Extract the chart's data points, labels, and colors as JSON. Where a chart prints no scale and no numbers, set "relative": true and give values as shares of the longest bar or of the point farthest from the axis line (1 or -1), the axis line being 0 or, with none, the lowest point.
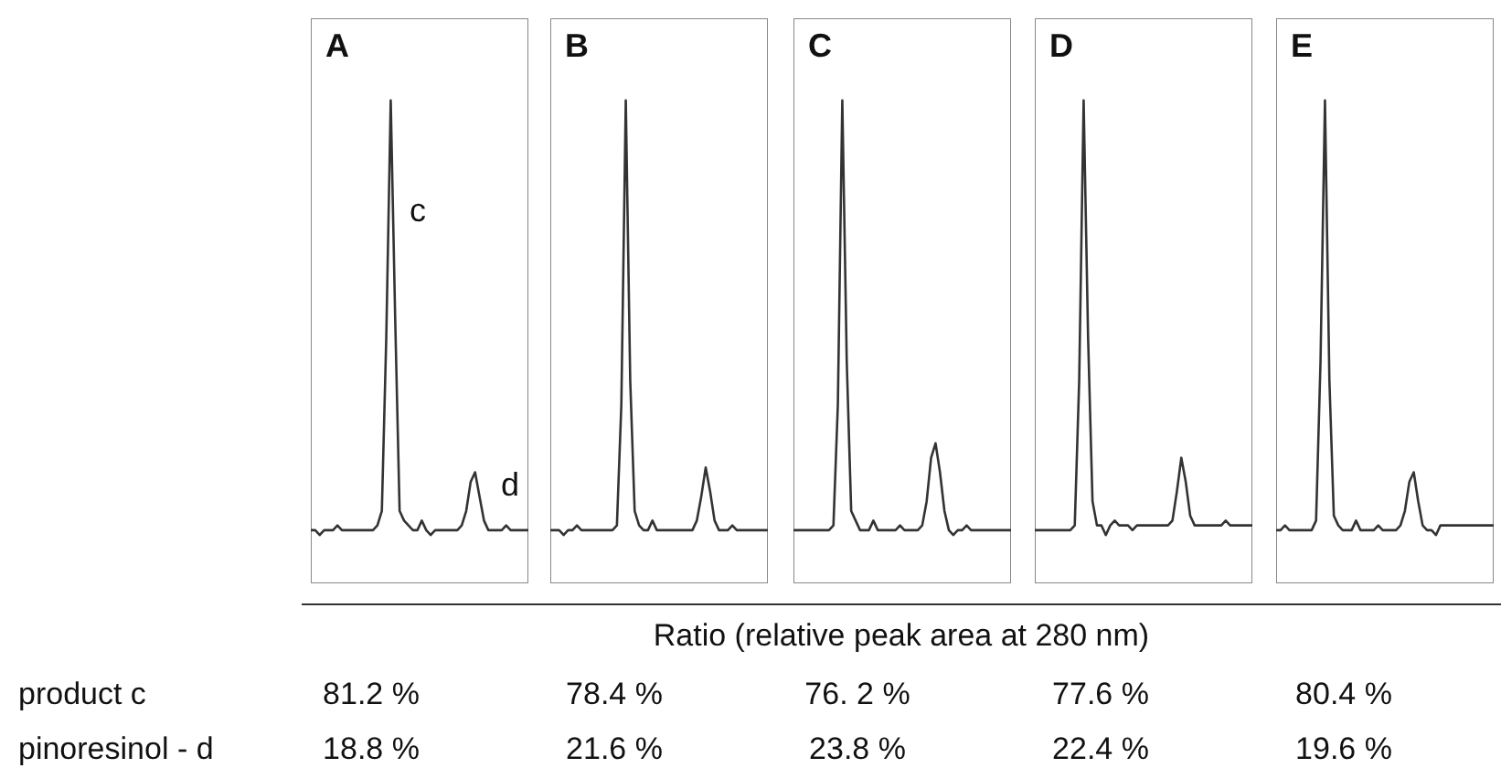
{
  "chart_data": [
    {
      "type": "line",
      "title": "A",
      "relative": true,
      "categories": [
        null,
        null,
        null,
        null,
        null,
        null,
        null,
        null,
        null,
        null,
        null,
        null,
        null,
        null,
        null,
        null,
        null,
        null,
        null,
        null,
        null,
        null,
        null,
        null,
        null,
        null,
        null,
        null,
        null,
        null,
        null,
        null,
        null,
        null,
        null,
        null,
        null,
        null,
        null,
        null,
        null,
        null,
        null,
        null,
        null,
        null,
        null,
        null,
        null,
        null
      ],
      "series": [
        {
          "color": "#333333",
          "values": [
            0.11,
            0.11,
            0.1,
            0.11,
            0.11,
            0.11,
            0.12,
            0.11,
            0.11,
            0.11,
            0.11,
            0.11,
            0.11,
            0.11,
            0.11,
            0.12,
            0.15,
            0.51,
            1,
            0.55,
            0.15,
            0.13,
            0.12,
            0.11,
            0.11,
            0.13,
            0.11,
            0.1,
            0.11,
            0.11,
            0.11,
            0.11,
            0.11,
            0.11,
            0.12,
            0.15,
            0.21,
            0.23,
            0.18,
            0.13,
            0.11,
            0.11,
            0.11,
            0.11,
            0.12,
            0.11,
            0.11,
            0.11,
            0.11,
            0.11
          ]
        }
      ],
      "annotations": [
        "c",
        "d"
      ]
    },
    {
      "type": "line",
      "title": "B",
      "relative": true,
      "categories": [
        null,
        null,
        null,
        null,
        null,
        null,
        null,
        null,
        null,
        null,
        null,
        null,
        null,
        null,
        null,
        null,
        null,
        null,
        null,
        null,
        null,
        null,
        null,
        null,
        null,
        null,
        null,
        null,
        null,
        null,
        null,
        null,
        null,
        null,
        null,
        null,
        null,
        null,
        null,
        null,
        null,
        null,
        null,
        null,
        null,
        null,
        null,
        null,
        null,
        null
      ],
      "series": [
        {
          "color": "#333333",
          "values": [
            0.11,
            0.11,
            0.11,
            0.1,
            0.11,
            0.11,
            0.12,
            0.11,
            0.11,
            0.11,
            0.11,
            0.11,
            0.11,
            0.11,
            0.11,
            0.12,
            0.37,
            1,
            0.42,
            0.15,
            0.12,
            0.11,
            0.11,
            0.13,
            0.11,
            0.11,
            0.11,
            0.11,
            0.11,
            0.11,
            0.11,
            0.11,
            0.11,
            0.13,
            0.18,
            0.24,
            0.19,
            0.13,
            0.11,
            0.11,
            0.11,
            0.12,
            0.11,
            0.11,
            0.11,
            0.11,
            0.11,
            0.11,
            0.11,
            0.11
          ]
        }
      ]
    },
    {
      "type": "line",
      "title": "C",
      "relative": true,
      "categories": [
        null,
        null,
        null,
        null,
        null,
        null,
        null,
        null,
        null,
        null,
        null,
        null,
        null,
        null,
        null,
        null,
        null,
        null,
        null,
        null,
        null,
        null,
        null,
        null,
        null,
        null,
        null,
        null,
        null,
        null,
        null,
        null,
        null,
        null,
        null,
        null,
        null,
        null,
        null,
        null,
        null,
        null,
        null,
        null,
        null,
        null,
        null,
        null,
        null,
        null
      ],
      "series": [
        {
          "color": "#333333",
          "values": [
            0.11,
            0.11,
            0.11,
            0.11,
            0.11,
            0.11,
            0.11,
            0.11,
            0.11,
            0.12,
            0.37,
            1,
            0.46,
            0.15,
            0.13,
            0.11,
            0.11,
            0.11,
            0.13,
            0.11,
            0.11,
            0.11,
            0.11,
            0.11,
            0.12,
            0.11,
            0.11,
            0.11,
            0.11,
            0.12,
            0.17,
            0.26,
            0.29,
            0.23,
            0.15,
            0.11,
            0.1,
            0.11,
            0.11,
            0.12,
            0.11,
            0.11,
            0.11,
            0.11,
            0.11,
            0.11,
            0.11,
            0.11,
            0.11,
            0.11
          ]
        }
      ]
    },
    {
      "type": "line",
      "title": "D",
      "relative": true,
      "categories": [
        null,
        null,
        null,
        null,
        null,
        null,
        null,
        null,
        null,
        null,
        null,
        null,
        null,
        null,
        null,
        null,
        null,
        null,
        null,
        null,
        null,
        null,
        null,
        null,
        null,
        null,
        null,
        null,
        null,
        null,
        null,
        null,
        null,
        null,
        null,
        null,
        null,
        null,
        null,
        null,
        null,
        null,
        null,
        null,
        null,
        null,
        null,
        null,
        null,
        null
      ],
      "series": [
        {
          "color": "#333333",
          "values": [
            0.11,
            0.11,
            0.11,
            0.11,
            0.11,
            0.11,
            0.11,
            0.11,
            0.11,
            0.12,
            0.42,
            1,
            0.51,
            0.17,
            0.12,
            0.12,
            0.1,
            0.12,
            0.13,
            0.12,
            0.12,
            0.12,
            0.11,
            0.12,
            0.12,
            0.12,
            0.12,
            0.12,
            0.12,
            0.12,
            0.12,
            0.13,
            0.19,
            0.26,
            0.21,
            0.14,
            0.12,
            0.12,
            0.12,
            0.12,
            0.12,
            0.12,
            0.12,
            0.13,
            0.12,
            0.12,
            0.12,
            0.12,
            0.12,
            0.12
          ]
        }
      ]
    },
    {
      "type": "line",
      "title": "E",
      "relative": true,
      "categories": [
        null,
        null,
        null,
        null,
        null,
        null,
        null,
        null,
        null,
        null,
        null,
        null,
        null,
        null,
        null,
        null,
        null,
        null,
        null,
        null,
        null,
        null,
        null,
        null,
        null,
        null,
        null,
        null,
        null,
        null,
        null,
        null,
        null,
        null,
        null,
        null,
        null,
        null,
        null,
        null,
        null,
        null,
        null,
        null,
        null,
        null,
        null,
        null,
        null,
        null
      ],
      "series": [
        {
          "color": "#333333",
          "values": [
            0.11,
            0.11,
            0.12,
            0.11,
            0.11,
            0.11,
            0.11,
            0.11,
            0.11,
            0.13,
            0.46,
            1,
            0.42,
            0.14,
            0.12,
            0.11,
            0.11,
            0.11,
            0.13,
            0.11,
            0.11,
            0.11,
            0.11,
            0.12,
            0.11,
            0.11,
            0.11,
            0.11,
            0.12,
            0.15,
            0.21,
            0.23,
            0.17,
            0.12,
            0.11,
            0.11,
            0.1,
            0.12,
            0.12,
            0.12,
            0.12,
            0.12,
            0.12,
            0.12,
            0.12,
            0.12,
            0.12,
            0.12,
            0.12,
            0.12
          ]
        }
      ]
    },
    {
      "type": "other",
      "title": "Ratio (relative peak area at 280 nm)",
      "annotations": [
        "product c",
        "81.2 %",
        "78.4 %",
        "76. 2 %",
        "77.6 %",
        "80.4 %",
        "pinoresinol - d",
        "18.8 %",
        "21.6 %",
        "23.8 %",
        "22.4 %",
        "19.6 %"
      ]
    }
  ]
}
